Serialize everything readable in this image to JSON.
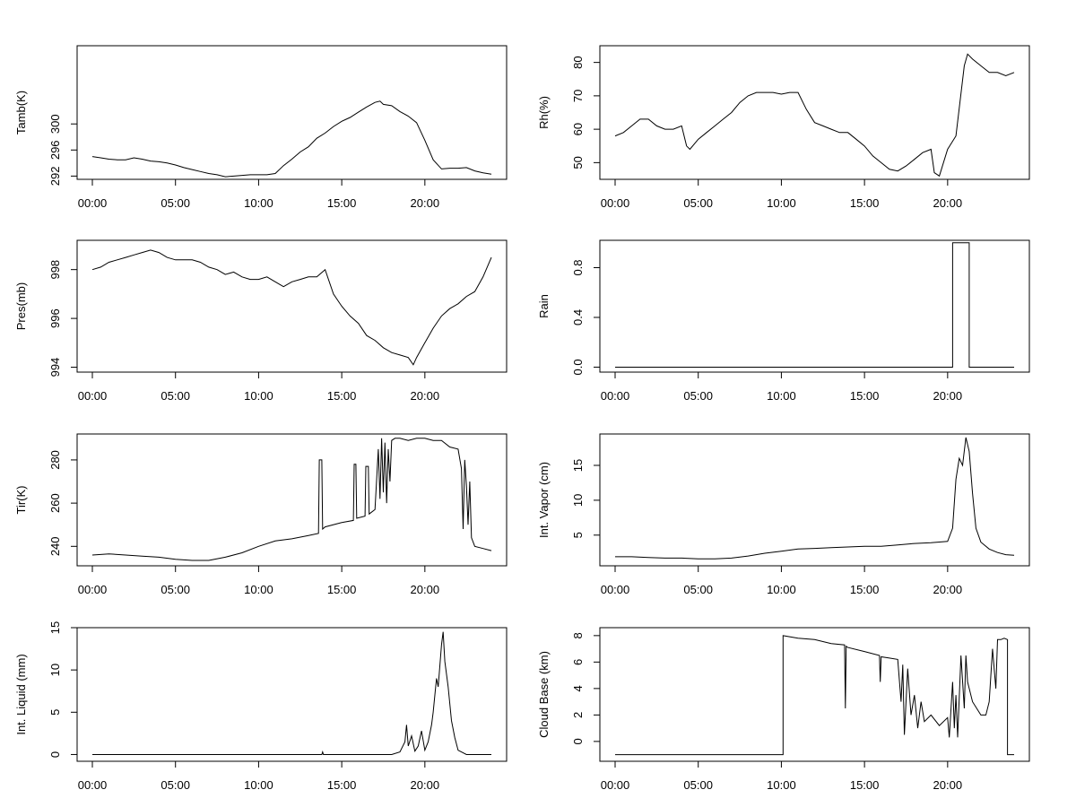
{
  "chart_data": [
    {
      "type": "line",
      "ylabel": "Tamb(K)",
      "xlim": [
        0,
        24
      ],
      "ylim": [
        291.5,
        312
      ],
      "yticks": [
        292,
        296,
        300
      ],
      "xtick_labels": [
        "00:00",
        "05:00",
        "10:00",
        "15:00",
        "20:00"
      ],
      "series": [
        {
          "x": [
            0,
            0.5,
            1,
            1.5,
            2,
            2.5,
            3,
            3.5,
            4,
            4.5,
            5,
            5.5,
            6,
            6.5,
            7,
            7.5,
            8,
            8.5,
            9,
            9.5,
            10,
            10.5,
            11,
            11.5,
            12,
            12.5,
            13,
            13.5,
            14,
            14.5,
            15,
            15.5,
            16,
            16.5,
            17,
            17.3,
            17.5,
            18,
            18.5,
            19,
            19.5,
            20,
            20.5,
            21,
            21.5,
            22,
            22.5,
            23,
            23.5,
            24
          ],
          "y": [
            295,
            294.8,
            294.6,
            294.5,
            294.5,
            294.8,
            294.6,
            294.3,
            294.2,
            294,
            293.7,
            293.3,
            293,
            292.7,
            292.4,
            292.2,
            291.9,
            292,
            292.1,
            292.2,
            292.2,
            292.2,
            292.4,
            293.6,
            294.6,
            295.7,
            296.5,
            297.8,
            298.6,
            299.6,
            300.4,
            301,
            301.8,
            302.6,
            303.3,
            303.5,
            303,
            302.8,
            301.9,
            301.2,
            300.2,
            297.5,
            294.5,
            293.1,
            293.2,
            293.2,
            293.3,
            292.8,
            292.5,
            292.3
          ]
        }
      ]
    },
    {
      "type": "line",
      "ylabel": "Rh(%)",
      "xlim": [
        0,
        24
      ],
      "ylim": [
        45,
        85
      ],
      "yticks": [
        50,
        60,
        70,
        80
      ],
      "xtick_labels": [
        "00:00",
        "05:00",
        "10:00",
        "15:00",
        "20:00"
      ],
      "series": [
        {
          "x": [
            0,
            0.5,
            1,
            1.5,
            2,
            2.5,
            3,
            3.5,
            4,
            4.3,
            4.5,
            5,
            5.5,
            6,
            6.5,
            7,
            7.5,
            8,
            8.5,
            9,
            9.5,
            10,
            10.5,
            11,
            11.5,
            12,
            12.5,
            13,
            13.5,
            14,
            14.5,
            15,
            15.5,
            16,
            16.5,
            17,
            17.5,
            18,
            18.5,
            19,
            19.2,
            19.5,
            20,
            20.5,
            21,
            21.2,
            21.5,
            22,
            22.5,
            23,
            23.5,
            24
          ],
          "y": [
            58,
            59,
            61,
            63,
            63,
            61,
            60,
            60,
            61,
            55,
            54,
            57,
            59,
            61,
            63,
            65,
            68,
            70,
            71,
            71,
            71,
            70.5,
            71,
            71,
            66,
            62,
            61,
            60,
            59,
            59,
            57,
            55,
            52,
            50,
            48,
            47.5,
            49,
            51,
            53,
            54,
            47,
            46,
            54,
            58,
            79,
            82.5,
            81,
            79,
            77,
            77,
            76,
            77
          ]
        }
      ]
    },
    {
      "type": "line",
      "ylabel": "Pres(mb)",
      "xlim": [
        0,
        24
      ],
      "ylim": [
        993.8,
        999.2
      ],
      "yticks": [
        994,
        996,
        998
      ],
      "xtick_labels": [
        "00:00",
        "05:00",
        "10:00",
        "15:00",
        "20:00"
      ],
      "series": [
        {
          "x": [
            0,
            0.5,
            1,
            1.5,
            2,
            2.5,
            3,
            3.5,
            4,
            4.5,
            5,
            5.5,
            6,
            6.5,
            7,
            7.5,
            8,
            8.5,
            9,
            9.5,
            10,
            10.5,
            11,
            11.5,
            12,
            12.5,
            13,
            13.5,
            14,
            14.5,
            15,
            15.5,
            16,
            16.5,
            17,
            17.5,
            18,
            18.5,
            19,
            19.3,
            19.5,
            20,
            20.5,
            21,
            21.5,
            22,
            22.5,
            23,
            23.5,
            24
          ],
          "y": [
            998,
            998.1,
            998.3,
            998.4,
            998.5,
            998.6,
            998.7,
            998.8,
            998.7,
            998.5,
            998.4,
            998.4,
            998.4,
            998.3,
            998.1,
            998,
            997.8,
            997.9,
            997.7,
            997.6,
            997.6,
            997.7,
            997.5,
            997.3,
            997.5,
            997.6,
            997.7,
            997.7,
            998,
            997,
            996.5,
            996.1,
            995.8,
            995.3,
            995.1,
            994.8,
            994.6,
            994.5,
            994.4,
            994.1,
            994.4,
            995,
            995.6,
            996.1,
            996.4,
            996.6,
            996.9,
            997.1,
            997.7,
            998.5
          ]
        }
      ]
    },
    {
      "type": "line",
      "ylabel": "Rain",
      "xlim": [
        0,
        24
      ],
      "ylim": [
        -0.04,
        1.02
      ],
      "yticks": [
        0.0,
        0.4,
        0.8
      ],
      "xtick_labels": [
        "00:00",
        "05:00",
        "10:00",
        "15:00",
        "20:00"
      ],
      "series": [
        {
          "x": [
            0,
            20.3,
            20.3,
            21.3,
            21.3,
            24
          ],
          "y": [
            0,
            0,
            1,
            1,
            0,
            0
          ]
        }
      ]
    },
    {
      "type": "line",
      "ylabel": "Tir(K)",
      "xlim": [
        0,
        24
      ],
      "ylim": [
        231,
        292
      ],
      "yticks": [
        240,
        260,
        280
      ],
      "xtick_labels": [
        "00:00",
        "05:00",
        "10:00",
        "15:00",
        "20:00"
      ],
      "series": [
        {
          "x": [
            0,
            1,
            2,
            3,
            4,
            5,
            6,
            7,
            8,
            9,
            10,
            11,
            12,
            13,
            13.6,
            13.65,
            13.8,
            13.85,
            14,
            15,
            15.7,
            15.75,
            15.85,
            15.9,
            16.4,
            16.45,
            16.6,
            16.65,
            17,
            17.2,
            17.3,
            17.4,
            17.5,
            17.6,
            17.7,
            17.8,
            17.9,
            18,
            18.2,
            18.5,
            19,
            19.5,
            20,
            20.5,
            21,
            21.5,
            22,
            22.2,
            22.3,
            22.4,
            22.5,
            22.6,
            22.7,
            22.8,
            23,
            23.5,
            24
          ],
          "y": [
            236,
            236.5,
            236,
            235.5,
            235,
            234,
            233.5,
            233.5,
            235,
            237,
            240,
            242.5,
            243.5,
            245,
            246,
            280,
            280,
            248,
            249,
            251,
            252,
            278,
            278,
            253,
            254,
            277,
            277,
            255,
            257,
            285,
            262,
            290,
            265,
            288,
            260,
            285,
            270,
            289,
            290,
            290,
            289,
            290,
            290,
            289,
            289,
            286,
            285,
            276,
            248,
            280,
            268,
            250,
            270,
            244,
            240,
            239,
            238
          ]
        }
      ]
    },
    {
      "type": "line",
      "ylabel": "Int. Vapor (cm)",
      "xlim": [
        0,
        24
      ],
      "ylim": [
        0.6,
        19.5
      ],
      "yticks": [
        5,
        10,
        15
      ],
      "xtick_labels": [
        "00:00",
        "05:00",
        "10:00",
        "15:00",
        "20:00"
      ],
      "series": [
        {
          "x": [
            0,
            1,
            2,
            3,
            4,
            5,
            6,
            7,
            8,
            9,
            10,
            11,
            12,
            13,
            14,
            15,
            16,
            17,
            18,
            19,
            20,
            20.3,
            20.5,
            20.7,
            20.9,
            21.1,
            21.3,
            21.5,
            21.7,
            22,
            22.5,
            23,
            23.5,
            24
          ],
          "y": [
            1.9,
            1.9,
            1.8,
            1.7,
            1.7,
            1.6,
            1.6,
            1.7,
            2,
            2.4,
            2.7,
            3,
            3.1,
            3.2,
            3.3,
            3.4,
            3.4,
            3.6,
            3.8,
            3.9,
            4.1,
            6,
            13,
            16,
            15,
            19,
            17,
            11,
            6,
            4,
            3,
            2.5,
            2.2,
            2.1
          ]
        }
      ]
    },
    {
      "type": "line",
      "ylabel": "Int. Liquid (mm)",
      "xlim": [
        0,
        24
      ],
      "ylim": [
        -0.8,
        15
      ],
      "yticks": [
        0,
        5,
        10,
        15
      ],
      "xtick_labels": [
        "00:00",
        "05:00",
        "10:00",
        "15:00",
        "20:00"
      ],
      "series": [
        {
          "x": [
            0,
            13.8,
            13.85,
            13.9,
            18,
            18.5,
            18.8,
            18.9,
            19,
            19.2,
            19.4,
            19.6,
            19.8,
            20,
            20.2,
            20.4,
            20.5,
            20.7,
            20.8,
            21,
            21.1,
            21.2,
            21.4,
            21.6,
            21.8,
            22,
            22.5,
            24
          ],
          "y": [
            0,
            0,
            0.3,
            0,
            0,
            0.3,
            1.5,
            3.5,
            1,
            2.2,
            0.4,
            1,
            2.8,
            0.5,
            1.5,
            3.5,
            5,
            9,
            8,
            13,
            14.5,
            11,
            8,
            4,
            2,
            0.5,
            0,
            0
          ]
        }
      ]
    },
    {
      "type": "line",
      "ylabel": "Cloud Base (km)",
      "xlim": [
        0,
        24
      ],
      "ylim": [
        -1.5,
        8.6
      ],
      "yticks": [
        0,
        2,
        4,
        6,
        8
      ],
      "xtick_labels": [
        "00:00",
        "05:00",
        "10:00",
        "15:00",
        "20:00"
      ],
      "series": [
        {
          "x": [
            0,
            10.1,
            10.1,
            11,
            12,
            13,
            13.8,
            13.85,
            13.9,
            14,
            15,
            15.9,
            15.95,
            16,
            16.5,
            17,
            17.2,
            17.3,
            17.4,
            17.6,
            17.8,
            18,
            18.2,
            18.4,
            18.6,
            19,
            19.5,
            20,
            20.1,
            20.3,
            20.4,
            20.5,
            20.6,
            20.8,
            21,
            21.1,
            21.2,
            21.5,
            22,
            22.3,
            22.5,
            22.7,
            22.9,
            23,
            23.2,
            23.4,
            23.6,
            23.6,
            24
          ],
          "y": [
            -1,
            -1,
            8,
            7.8,
            7.7,
            7.4,
            7.3,
            2.5,
            7.2,
            7.1,
            6.8,
            6.5,
            4.5,
            6.4,
            6.3,
            6.2,
            3,
            5.8,
            0.5,
            5.5,
            2,
            3.5,
            1,
            3,
            1.5,
            2,
            1.2,
            1.8,
            0.3,
            4.5,
            1,
            3.5,
            0.3,
            6.5,
            2.5,
            6.5,
            4.5,
            3,
            2,
            2,
            3,
            7,
            4,
            7.7,
            7.7,
            7.8,
            7.7,
            -1,
            -1
          ]
        }
      ]
    }
  ]
}
